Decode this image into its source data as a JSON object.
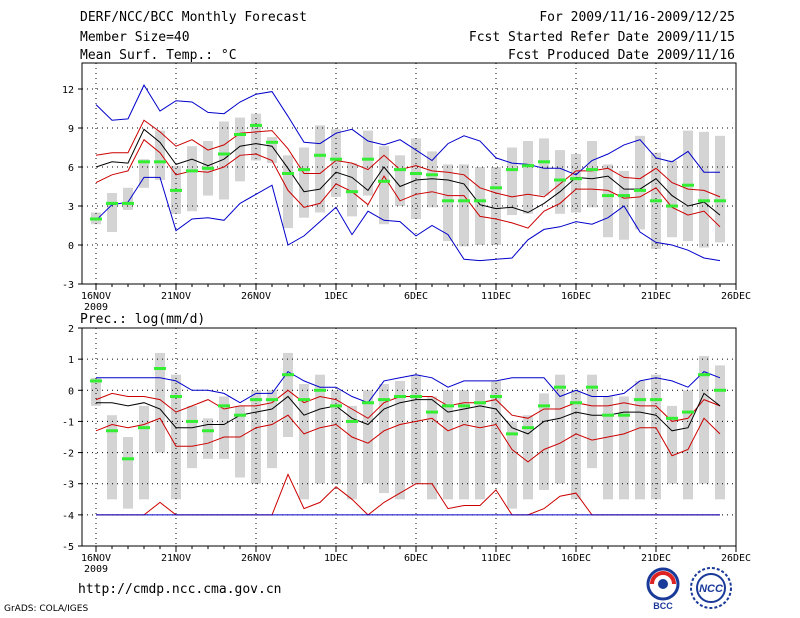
{
  "header": {
    "title": "DERF/NCC/BCC Monthly Forecast",
    "member_size": "Member Size=40",
    "variable_top": "Mean Surf. Temp.: °C",
    "period": "For 2009/11/16-2009/12/25",
    "refer_date": "Fcst Started Refer Date 2009/11/15",
    "produced_date": "Fcst Produced Date 2009/11/16"
  },
  "footer": {
    "url": "http://cmdp.ncc.cma.gov.cn",
    "grads": "GrADS: COLA/IGES",
    "logo_left_text": "BCC",
    "logo_right_text": "NCC"
  },
  "colors": {
    "blue": "#0000cc",
    "red": "#cc0000",
    "black": "#000000",
    "green": "#33ee33",
    "box": "#d4d4d4",
    "grid": "#000000"
  },
  "chart_data": [
    {
      "type": "box-ensemble",
      "title": "Mean Surf. Temp.: °C",
      "x_labels": [
        "16NOV",
        "21NOV",
        "26NOV",
        "1DEC",
        "6DEC",
        "11DEC",
        "16DEC",
        "21DEC",
        "26DEC"
      ],
      "x_year_label": "2009",
      "ylim": [
        -3,
        14
      ],
      "yticks": [
        -3,
        0,
        3,
        6,
        9,
        12
      ],
      "days": 40,
      "series": [
        {
          "name": "max",
          "color": "blue",
          "values": [
            10.8,
            9.6,
            9.7,
            12.3,
            10.3,
            11.1,
            11.0,
            10.2,
            10.1,
            11.0,
            11.6,
            11.8,
            9.9,
            7.9,
            7.8,
            8.6,
            8.9,
            8.0,
            7.7,
            8.1,
            7.3,
            6.5,
            7.8,
            8.4,
            8.0,
            6.7,
            6.3,
            6.2,
            5.9,
            5.9,
            5.4,
            6.5,
            7.0,
            7.7,
            8.1,
            6.7,
            6.4,
            7.2,
            5.6,
            5.6
          ]
        },
        {
          "name": "upper",
          "color": "red",
          "values": [
            6.9,
            7.1,
            7.1,
            9.6,
            8.7,
            7.6,
            8.1,
            7.3,
            7.7,
            8.6,
            8.7,
            8.8,
            7.4,
            5.5,
            5.5,
            6.5,
            6.3,
            5.8,
            6.9,
            5.8,
            6.1,
            5.7,
            5.6,
            5.4,
            4.4,
            4.0,
            3.7,
            3.9,
            3.7,
            4.7,
            5.7,
            5.7,
            5.9,
            5.2,
            5.1,
            5.9,
            4.8,
            4.3,
            4.2,
            3.7
          ]
        },
        {
          "name": "mean",
          "color": "black",
          "values": [
            6.0,
            6.4,
            6.3,
            8.9,
            7.9,
            6.2,
            6.6,
            6.1,
            6.6,
            7.6,
            7.8,
            7.6,
            5.9,
            4.1,
            4.3,
            5.6,
            5.2,
            4.2,
            6.0,
            4.5,
            5.0,
            5.1,
            5.0,
            4.7,
            3.1,
            2.8,
            2.9,
            2.5,
            3.2,
            4.1,
            5.2,
            5.1,
            5.3,
            4.3,
            4.3,
            5.1,
            3.8,
            3.0,
            3.3,
            2.3
          ]
        },
        {
          "name": "lower",
          "color": "red",
          "values": [
            4.8,
            5.4,
            5.7,
            8.1,
            7.1,
            5.4,
            5.7,
            5.6,
            6.0,
            6.9,
            7.0,
            6.5,
            4.2,
            2.9,
            3.2,
            4.7,
            4.1,
            3.1,
            5.3,
            3.4,
            3.9,
            4.1,
            3.8,
            3.8,
            2.2,
            2.0,
            1.7,
            1.3,
            2.6,
            3.2,
            4.3,
            4.3,
            4.2,
            3.6,
            3.7,
            4.4,
            2.9,
            2.3,
            2.6,
            1.4
          ]
        },
        {
          "name": "min",
          "color": "blue",
          "values": [
            1.9,
            3.1,
            3.3,
            5.2,
            5.2,
            1.1,
            2.0,
            2.1,
            1.9,
            3.2,
            3.9,
            4.6,
            0.0,
            0.7,
            1.8,
            2.9,
            0.8,
            2.6,
            1.9,
            1.8,
            0.7,
            1.5,
            0.8,
            -1.1,
            -1.2,
            -1.1,
            -1.0,
            0.4,
            1.2,
            1.4,
            1.8,
            1.6,
            2.1,
            3.0,
            1.0,
            0.2,
            0.0,
            -0.4,
            -1.0,
            -1.2
          ]
        },
        {
          "name": "control",
          "color": "green",
          "values": [
            2.0,
            3.2,
            3.2,
            6.4,
            6.4,
            4.2,
            5.7,
            5.9,
            7.0,
            8.5,
            9.2,
            7.9,
            5.5,
            5.8,
            6.9,
            6.6,
            4.1,
            6.6,
            4.9,
            5.8,
            5.5,
            5.4,
            3.4,
            3.4,
            3.4,
            4.4,
            5.8,
            6.1,
            6.4,
            5.0,
            5.1,
            5.8,
            3.8,
            3.8,
            4.2,
            3.4,
            3.0,
            4.6,
            3.4,
            3.4
          ]
        },
        {
          "name": "box_top",
          "values": [
            2.5,
            4.0,
            4.4,
            6.6,
            8.8,
            6.1,
            7.6,
            8.0,
            9.5,
            9.8,
            10.1,
            8.3,
            6.9,
            7.5,
            9.2,
            8.9,
            6.3,
            8.8,
            7.6,
            6.9,
            8.2,
            7.2,
            6.2,
            6.2,
            6.0,
            6.0,
            7.5,
            8.0,
            8.2,
            7.3,
            7.0,
            8.0,
            6.2,
            5.7,
            8.4,
            7.1,
            6.5,
            8.8,
            8.7,
            8.4
          ]
        },
        {
          "name": "box_bottom",
          "values": [
            1.6,
            1.0,
            2.7,
            4.4,
            5.0,
            2.4,
            2.6,
            3.8,
            3.5,
            4.9,
            6.5,
            6.3,
            1.3,
            2.1,
            2.5,
            3.7,
            2.2,
            3.8,
            1.6,
            3.0,
            2.0,
            2.9,
            0.3,
            -0.1,
            0.0,
            0.0,
            2.3,
            2.4,
            3.8,
            2.4,
            2.5,
            2.9,
            0.6,
            0.4,
            1.2,
            -0.3,
            0.6,
            0.3,
            -0.2,
            0.2
          ]
        }
      ]
    },
    {
      "type": "box-ensemble",
      "title": "Prec.: log(mm/d)",
      "x_labels": [
        "16NOV",
        "21NOV",
        "26NOV",
        "1DEC",
        "6DEC",
        "11DEC",
        "16DEC",
        "21DEC",
        "26DEC"
      ],
      "x_year_label": "2009",
      "ylim": [
        -5,
        2
      ],
      "yticks": [
        -5,
        -4,
        -3,
        -2,
        -1,
        0,
        1,
        2
      ],
      "days": 40,
      "series": [
        {
          "name": "max",
          "color": "blue",
          "values": [
            0.4,
            0.4,
            0.4,
            0.4,
            0.4,
            0.3,
            0.0,
            0.0,
            -0.1,
            -0.4,
            -0.1,
            -0.1,
            0.6,
            0.3,
            0.1,
            0.1,
            -0.2,
            -0.4,
            0.3,
            0.4,
            0.5,
            0.4,
            0.1,
            0.3,
            0.3,
            0.3,
            0.4,
            0.4,
            0.4,
            -0.2,
            0.0,
            -0.2,
            -0.2,
            -0.1,
            0.3,
            0.4,
            0.3,
            0.1,
            0.6,
            0.4
          ]
        },
        {
          "name": "upper",
          "color": "red",
          "values": [
            -0.3,
            -0.1,
            -0.2,
            -0.2,
            -0.3,
            -0.7,
            -0.5,
            -0.3,
            -0.6,
            -0.5,
            -0.5,
            -0.4,
            0.0,
            -0.4,
            -0.2,
            -0.3,
            -0.6,
            -0.9,
            -0.4,
            -0.2,
            -0.2,
            -0.2,
            -0.5,
            -0.4,
            -0.4,
            -0.3,
            -0.8,
            -0.9,
            -0.6,
            -0.6,
            -0.4,
            -0.5,
            -0.5,
            -0.4,
            -0.5,
            -0.5,
            -1.0,
            -0.9,
            -0.3,
            -0.5
          ]
        },
        {
          "name": "mean",
          "color": "black",
          "values": [
            -0.4,
            -0.4,
            -0.5,
            -0.4,
            -0.6,
            -1.2,
            -1.2,
            -1.1,
            -1.1,
            -0.8,
            -0.7,
            -0.6,
            -0.2,
            -0.8,
            -0.6,
            -0.5,
            -0.9,
            -1.1,
            -0.6,
            -0.4,
            -0.3,
            -0.3,
            -0.7,
            -0.6,
            -0.5,
            -0.6,
            -1.2,
            -1.4,
            -1.0,
            -0.9,
            -0.7,
            -0.8,
            -0.8,
            -0.7,
            -0.7,
            -0.8,
            -1.3,
            -1.2,
            -0.1,
            -0.5
          ]
        },
        {
          "name": "lower",
          "color": "red",
          "values": [
            -1.3,
            -1.1,
            -1.2,
            -1.1,
            -0.9,
            -1.8,
            -1.8,
            -1.7,
            -1.5,
            -1.5,
            -1.2,
            -1.1,
            -0.8,
            -1.4,
            -1.2,
            -1.1,
            -1.5,
            -1.7,
            -1.3,
            -1.1,
            -1.0,
            -0.9,
            -1.3,
            -1.1,
            -1.2,
            -1.1,
            -1.9,
            -2.3,
            -1.9,
            -1.7,
            -1.4,
            -1.6,
            -1.5,
            -1.4,
            -1.2,
            -1.2,
            -2.1,
            -1.9,
            -0.9,
            -1.4
          ]
        },
        {
          "name": "min_red",
          "color": "red",
          "values": [
            -4.0,
            -4.0,
            -4.0,
            -4.0,
            -3.6,
            -4.0,
            -4.0,
            -4.0,
            -4.0,
            -4.0,
            -4.0,
            -4.0,
            -2.7,
            -3.8,
            -3.6,
            -3.1,
            -3.5,
            -4.0,
            -3.6,
            -3.3,
            -3.0,
            -3.0,
            -3.8,
            -3.7,
            -3.7,
            -3.2,
            -4.0,
            -4.0,
            -3.8,
            -3.4,
            -3.3,
            -4.0,
            -4.0,
            -4.0,
            -4.0,
            -4.0,
            -4.0,
            -4.0,
            -4.0,
            -4.0
          ]
        },
        {
          "name": "min_blue",
          "color": "blue",
          "values": [
            -4.0,
            -4.0,
            -4.0,
            -4.0,
            -4.0,
            -4.0,
            -4.0,
            -4.0,
            -4.0,
            -4.0,
            -4.0,
            -4.0,
            -4.0,
            -4.0,
            -4.0,
            -4.0,
            -4.0,
            -4.0,
            -4.0,
            -4.0,
            -4.0,
            -4.0,
            -4.0,
            -4.0,
            -4.0,
            -4.0,
            -4.0,
            -4.0,
            -4.0,
            -4.0,
            -4.0,
            -4.0,
            -4.0,
            -4.0,
            -4.0,
            -4.0,
            -4.0,
            -4.0,
            -4.0,
            -4.0
          ]
        },
        {
          "name": "control",
          "color": "green",
          "values": [
            0.3,
            -1.3,
            -2.2,
            -1.2,
            0.7,
            -0.2,
            -1.0,
            -1.3,
            -0.5,
            -0.8,
            -0.3,
            -0.3,
            0.5,
            -0.3,
            0.0,
            -0.5,
            -1.0,
            -0.4,
            -0.3,
            -0.2,
            -0.2,
            -0.7,
            -0.5,
            -0.5,
            -0.4,
            -0.2,
            -1.4,
            -1.2,
            -0.5,
            0.1,
            -0.4,
            0.1,
            -0.8,
            -0.8,
            -0.3,
            -0.3,
            -0.9,
            -0.7,
            0.5,
            0.0
          ]
        },
        {
          "name": "box_top",
          "values": [
            0.4,
            -0.8,
            -1.5,
            -0.5,
            1.2,
            0.5,
            -0.5,
            -0.9,
            -0.2,
            -0.5,
            0.0,
            0.0,
            1.2,
            0.2,
            0.5,
            0.0,
            -0.5,
            0.0,
            0.2,
            0.3,
            0.5,
            -0.2,
            0.0,
            0.0,
            0.0,
            0.3,
            -1.0,
            -0.8,
            -0.1,
            0.5,
            0.0,
            0.5,
            -0.2,
            -0.2,
            0.3,
            0.5,
            -0.5,
            0.0,
            1.1,
            0.8
          ]
        },
        {
          "name": "box_bottom",
          "values": [
            -0.5,
            -3.5,
            -3.8,
            -3.5,
            -2.0,
            -3.5,
            -2.5,
            -2.2,
            -2.2,
            -2.8,
            -3.0,
            -2.5,
            -1.5,
            -3.5,
            -3.0,
            -3.0,
            -3.5,
            -3.0,
            -3.3,
            -3.5,
            -3.0,
            -3.5,
            -3.5,
            -3.5,
            -3.5,
            -3.0,
            -3.8,
            -3.5,
            -3.2,
            -3.0,
            -3.5,
            -2.5,
            -3.5,
            -3.5,
            -3.5,
            -3.5,
            -3.0,
            -3.5,
            -3.0,
            -3.5
          ]
        }
      ]
    }
  ]
}
